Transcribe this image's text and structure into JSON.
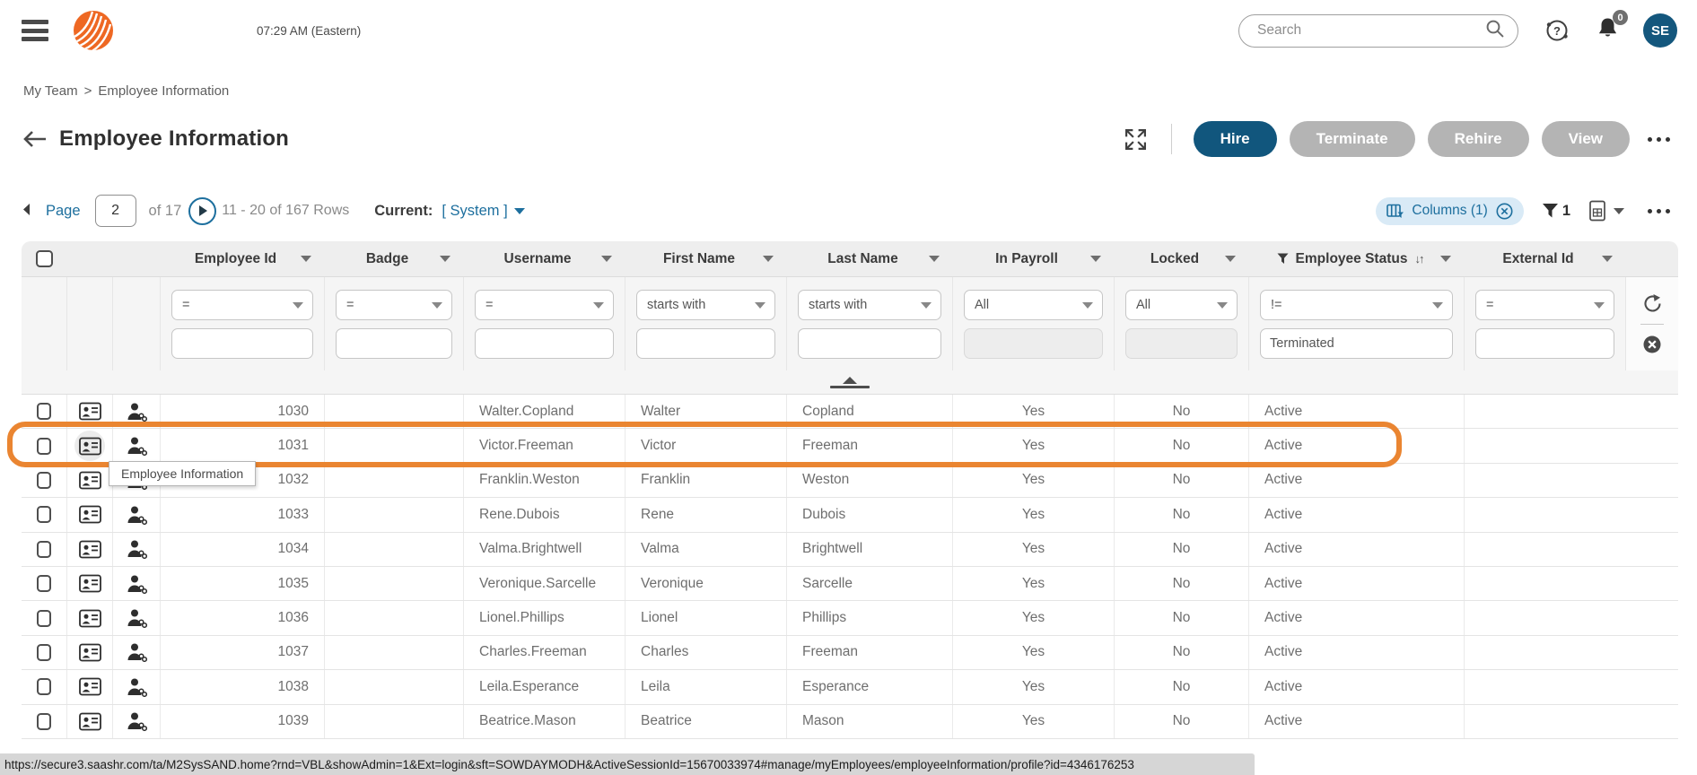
{
  "topbar": {
    "time": "07:29 AM (Eastern)",
    "search_placeholder": "Search",
    "notification_count": "0",
    "avatar_initials": "SE"
  },
  "breadcrumb": {
    "items": [
      "My Team",
      "Employee Information"
    ],
    "separator": ">"
  },
  "header": {
    "title": "Employee Information",
    "buttons": {
      "hire": "Hire",
      "terminate": "Terminate",
      "rehire": "Rehire",
      "view": "View"
    }
  },
  "pagination": {
    "page_label": "Page",
    "current_page": "2",
    "of_label": "of 17",
    "rows_label": "11 - 20 of 167 Rows",
    "current_label": "Current:",
    "current_value": "[ System ]"
  },
  "toolbar": {
    "columns_label": "Columns (1)",
    "filter_count": "1"
  },
  "tooltip": "Employee Information",
  "colors": {
    "primary_blue": "#11567d",
    "link_blue": "#1d6f9e",
    "logo_orange": "#ee6823",
    "annotation_orange": "#ea8531"
  },
  "table": {
    "columns": [
      "Employee Id",
      "Badge",
      "Username",
      "First Name",
      "Last Name",
      "In Payroll",
      "Locked",
      "Employee Status",
      "External Id"
    ],
    "filtered_column": "Employee Status",
    "sorted_column": "Employee Status",
    "filters": [
      {
        "op": "=",
        "value": "",
        "enabled": true
      },
      {
        "op": "=",
        "value": "",
        "enabled": true
      },
      {
        "op": "=",
        "value": "",
        "enabled": true
      },
      {
        "op": "starts with",
        "value": "",
        "enabled": true
      },
      {
        "op": "starts with",
        "value": "",
        "enabled": true
      },
      {
        "op": "All",
        "value": "",
        "enabled": false
      },
      {
        "op": "All",
        "value": "",
        "enabled": false
      },
      {
        "op": "!=",
        "value": "Terminated",
        "enabled": true
      },
      {
        "op": "=",
        "value": "",
        "enabled": true
      }
    ],
    "rows": [
      {
        "employee_id": "1030",
        "badge": "",
        "username": "Walter.Copland",
        "first_name": "Walter",
        "last_name": "Copland",
        "in_payroll": "Yes",
        "locked": "No",
        "status": "Active",
        "external_id": "",
        "highlighted": false
      },
      {
        "employee_id": "1031",
        "badge": "",
        "username": "Victor.Freeman",
        "first_name": "Victor",
        "last_name": "Freeman",
        "in_payroll": "Yes",
        "locked": "No",
        "status": "Active",
        "external_id": "",
        "highlighted": true
      },
      {
        "employee_id": "1032",
        "badge": "",
        "username": "Franklin.Weston",
        "first_name": "Franklin",
        "last_name": "Weston",
        "in_payroll": "Yes",
        "locked": "No",
        "status": "Active",
        "external_id": "",
        "highlighted": false
      },
      {
        "employee_id": "1033",
        "badge": "",
        "username": "Rene.Dubois",
        "first_name": "Rene",
        "last_name": "Dubois",
        "in_payroll": "Yes",
        "locked": "No",
        "status": "Active",
        "external_id": "",
        "highlighted": false
      },
      {
        "employee_id": "1034",
        "badge": "",
        "username": "Valma.Brightwell",
        "first_name": "Valma",
        "last_name": "Brightwell",
        "in_payroll": "Yes",
        "locked": "No",
        "status": "Active",
        "external_id": "",
        "highlighted": false
      },
      {
        "employee_id": "1035",
        "badge": "",
        "username": "Veronique.Sarcelle",
        "first_name": "Veronique",
        "last_name": "Sarcelle",
        "in_payroll": "Yes",
        "locked": "No",
        "status": "Active",
        "external_id": "",
        "highlighted": false
      },
      {
        "employee_id": "1036",
        "badge": "",
        "username": "Lionel.Phillips",
        "first_name": "Lionel",
        "last_name": "Phillips",
        "in_payroll": "Yes",
        "locked": "No",
        "status": "Active",
        "external_id": "",
        "highlighted": false
      },
      {
        "employee_id": "1037",
        "badge": "",
        "username": "Charles.Freeman",
        "first_name": "Charles",
        "last_name": "Freeman",
        "in_payroll": "Yes",
        "locked": "No",
        "status": "Active",
        "external_id": "",
        "highlighted": false
      },
      {
        "employee_id": "1038",
        "badge": "",
        "username": "Leila.Esperance",
        "first_name": "Leila",
        "last_name": "Esperance",
        "in_payroll": "Yes",
        "locked": "No",
        "status": "Active",
        "external_id": "",
        "highlighted": false
      },
      {
        "employee_id": "1039",
        "badge": "",
        "username": "Beatrice.Mason",
        "first_name": "Beatrice",
        "last_name": "Mason",
        "in_payroll": "Yes",
        "locked": "No",
        "status": "Active",
        "external_id": "",
        "highlighted": false
      }
    ]
  },
  "statusbar": {
    "url": "https://secure3.saashr.com/ta/M2SysSAND.home?rnd=VBL&showAdmin=1&Ext=login&sft=SOWDAYMODH&ActiveSessionId=15670033974#manage/myEmployees/employeeInformation/profile?id=4346176253"
  }
}
